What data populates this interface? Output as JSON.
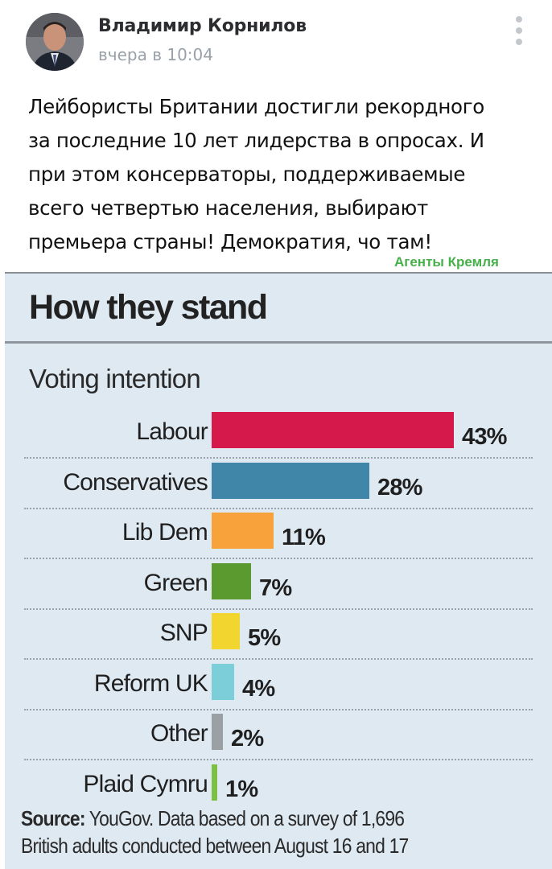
{
  "post": {
    "author": "Владимир Корнилов",
    "time": "вчера в 10:04",
    "text_lines": [
      "Лейбористы Британии достигли рекордного",
      "за последние 10 лет лидерства в опросах. И",
      "при этом консерваторы, поддерживаемые",
      "всего четвертью населения, выбирают",
      "премьера страны! Демократия, чо там!"
    ],
    "watermark": "Агенты Кремля",
    "icons": {
      "menu": "more-vertical-icon",
      "avatar": "author-avatar"
    }
  },
  "chart_data": {
    "type": "bar",
    "orientation": "horizontal",
    "title": "How they stand",
    "subtitle": "Voting intention",
    "categories": [
      "Labour",
      "Conservatives",
      "Lib Dem",
      "Green",
      "SNP",
      "Reform UK",
      "Other",
      "Plaid Cymru"
    ],
    "values": [
      43,
      28,
      11,
      7,
      5,
      4,
      2,
      1
    ],
    "value_labels": [
      "43%",
      "28%",
      "11%",
      "7%",
      "5%",
      "4%",
      "2%",
      "1%"
    ],
    "colors": [
      "#d6194b",
      "#3f86a8",
      "#f7a23b",
      "#5b9a2e",
      "#f2d52e",
      "#7ccfd8",
      "#9aa0a4",
      "#7dc142"
    ],
    "source_label": "Source:",
    "source_lines": [
      " YouGov. Data based on a survey of 1,696",
      "British adults conducted between August 16 and 17"
    ],
    "grid": false,
    "legend": "none"
  }
}
